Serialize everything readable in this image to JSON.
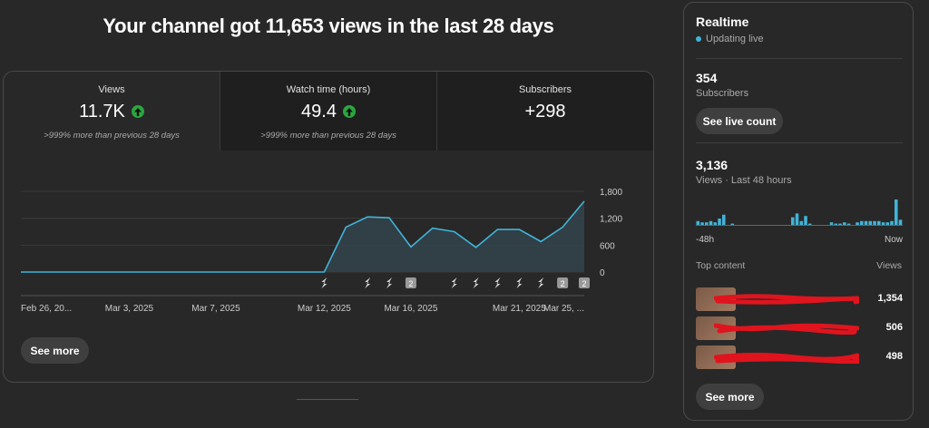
{
  "headline": "Your channel got 11,653 views in the last 28 days",
  "tabs": [
    {
      "label": "Views",
      "value": "11.7K",
      "trend": "up",
      "compare": ">999% more than previous 28 days"
    },
    {
      "label": "Watch time (hours)",
      "value": "49.4",
      "trend": "up",
      "compare": ">999% more than previous 28 days"
    },
    {
      "label": "Subscribers",
      "value": "+298",
      "trend": "",
      "compare": ""
    }
  ],
  "see_more_label": "See more",
  "chart_data": {
    "type": "area",
    "series": [
      {
        "values": [
          0,
          0,
          0,
          0,
          0,
          0,
          0,
          0,
          0,
          0,
          0,
          0,
          0,
          0,
          0,
          1000,
          1230,
          1210,
          560,
          980,
          900,
          550,
          950,
          950,
          680,
          1000,
          1580
        ]
      }
    ],
    "y_ticks": [
      "1,800",
      "1,200",
      "600",
      "0"
    ],
    "ylim": [
      0,
      1800
    ],
    "x_ticks": [
      {
        "label": "Feb 26, 20...",
        "index": 0
      },
      {
        "label": "Mar 3, 2025",
        "index": 5
      },
      {
        "label": "Mar 7, 2025",
        "index": 9
      },
      {
        "label": "Mar 12, 2025",
        "index": 14
      },
      {
        "label": "Mar 16, 2025",
        "index": 18
      },
      {
        "label": "Mar 21, 2025",
        "index": 23
      },
      {
        "label": "Mar 25, ...",
        "index": 26
      }
    ],
    "markers": [
      {
        "index": 14,
        "type": "short"
      },
      {
        "index": 16,
        "type": "short"
      },
      {
        "index": 17,
        "type": "short"
      },
      {
        "index": 18,
        "type": "badge",
        "label": "2"
      },
      {
        "index": 20,
        "type": "short"
      },
      {
        "index": 21,
        "type": "short"
      },
      {
        "index": 22,
        "type": "short"
      },
      {
        "index": 23,
        "type": "short"
      },
      {
        "index": 24,
        "type": "short"
      },
      {
        "index": 25,
        "type": "badge",
        "label": "2"
      },
      {
        "index": 26,
        "type": "badge",
        "label": "2"
      }
    ],
    "colors": {
      "line": "#41b4d9",
      "fill": "#32434b",
      "grid": "#3a3a3a"
    }
  },
  "realtime": {
    "title": "Realtime",
    "status": "Updating live",
    "subscribers_count": "354",
    "subscribers_label": "Subscribers",
    "see_live_count_label": "See live count",
    "views_count": "3,136",
    "views_label": "Views · Last 48 hours",
    "mini_chart": {
      "type": "bar",
      "values": [
        3,
        2,
        2,
        3,
        2,
        5,
        8,
        0,
        1,
        0,
        0,
        0,
        0,
        0,
        0,
        0,
        0,
        0,
        0,
        0,
        0,
        0,
        6,
        9,
        3,
        7,
        1,
        0,
        0,
        0,
        0,
        2,
        1,
        1,
        2,
        1,
        0,
        2,
        3,
        3,
        3,
        3,
        3,
        2,
        2,
        3,
        20,
        4
      ],
      "x_labels": [
        "-48h",
        "Now"
      ]
    },
    "top_content_label": "Top content",
    "views_col_label": "Views",
    "top_content": [
      {
        "views": "1,354"
      },
      {
        "views": "506"
      },
      {
        "views": "498"
      }
    ],
    "see_more_label": "See more"
  }
}
